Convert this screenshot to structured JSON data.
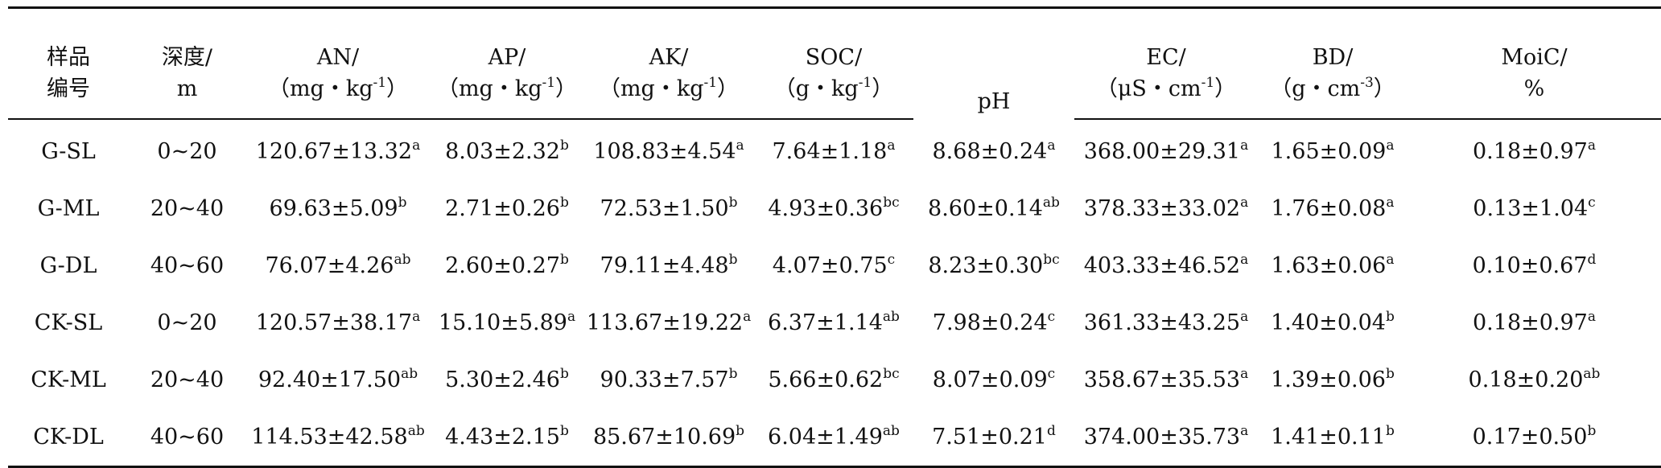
{
  "header": {
    "sample": [
      "样品",
      "编号"
    ],
    "depth": [
      "深度/",
      "m"
    ],
    "an": [
      "AN/",
      "（mg・kg",
      "-1",
      "）"
    ],
    "ap": [
      "AP/",
      "（mg・kg",
      "-1",
      "）"
    ],
    "ak": [
      "AK/",
      "（mg・kg",
      "-1",
      "）"
    ],
    "soc": [
      "SOC/",
      "（g・kg",
      "-1",
      "）"
    ],
    "ph": "pH",
    "ec": [
      "EC/",
      "（μS・cm",
      "-1",
      "）"
    ],
    "bd": [
      "BD/",
      "（g・cm",
      "-3",
      "）"
    ],
    "moic": [
      "MoiC/",
      "%"
    ]
  },
  "rows": [
    [
      "G-SL",
      "0~20",
      "120.67±13.32",
      "a",
      "8.03±2.32",
      "b",
      "108.83±4.54",
      "a",
      "7.64±1.18",
      "a",
      "8.68±0.24",
      "a",
      "368.00±29.31",
      "a",
      "1.65±0.09",
      "a",
      "0.18±0.97",
      "a"
    ],
    [
      "G-ML",
      "20~40",
      "69.63±5.09",
      "b",
      "2.71±0.26",
      "b",
      "72.53±1.50",
      "b",
      "4.93±0.36",
      "bc",
      "8.60±0.14",
      "ab",
      "378.33±33.02",
      "a",
      "1.76±0.08",
      "a",
      "0.13±1.04",
      "c"
    ],
    [
      "G-DL",
      "40~60",
      "76.07±4.26",
      "ab",
      "2.60±0.27",
      "b",
      "79.11±4.48",
      "b",
      "4.07±0.75",
      "c",
      "8.23±0.30",
      "bc",
      "403.33±46.52",
      "a",
      "1.63±0.06",
      "a",
      "0.10±0.67",
      "d"
    ],
    [
      "CK-SL",
      "0~20",
      "120.57±38.17",
      "a",
      "15.10±5.89",
      "a",
      "113.67±19.22",
      "a",
      "6.37±1.14",
      "ab",
      "7.98±0.24",
      "c",
      "361.33±43.25",
      "a",
      "1.40±0.04",
      "b",
      "0.18±0.97",
      "a"
    ],
    [
      "CK-ML",
      "20~40",
      "92.40±17.50",
      "ab",
      "5.30±2.46",
      "b",
      "90.33±7.57",
      "b",
      "5.66±0.62",
      "bc",
      "8.07±0.09",
      "c",
      "358.67±35.53",
      "a",
      "1.39±0.06",
      "b",
      "0.18±0.20",
      "ab"
    ],
    [
      "CK-DL",
      "40~60",
      "114.53±42.58",
      "ab",
      "4.43±2.15",
      "b",
      "85.67±10.69",
      "b",
      "6.04±1.49",
      "ab",
      "7.51±0.21",
      "d",
      "374.00±35.73",
      "a",
      "1.41±0.11",
      "b",
      "0.17±0.50",
      "b"
    ]
  ]
}
